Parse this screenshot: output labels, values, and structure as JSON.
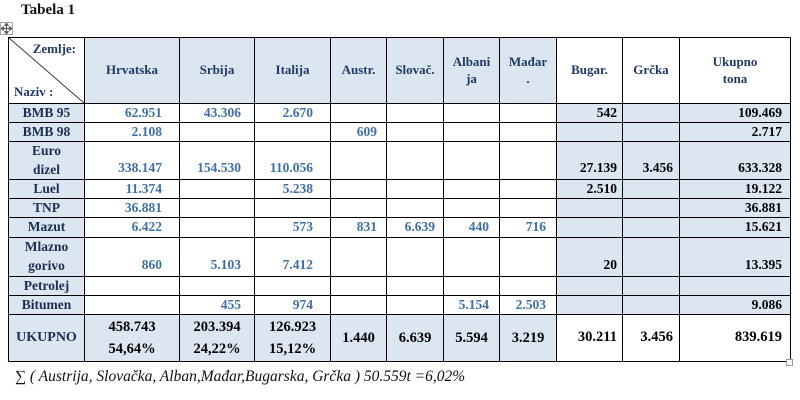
{
  "title": "Tabela 1",
  "colors": {
    "cell_shading": "#dce6f1",
    "value_text": "#3f6fa9",
    "header_text": "#1f3a66",
    "label_text": "#1c2f52",
    "grid_line": "#000000"
  },
  "table": {
    "corner": {
      "top_label": "Zemlje:",
      "bottom_label": "Naziv :"
    },
    "columns": [
      "Hrvatska",
      "Srbija",
      "Italija",
      "Austr.",
      "Slovač.",
      "Albani\nja",
      "Mađar\n.",
      "Bugar.",
      "Grčka",
      "Ukupno\ntona"
    ],
    "rows": [
      {
        "label": "BMB 95",
        "values": [
          "62.951",
          "43.306",
          "2.670",
          "",
          "",
          "",
          "",
          "542",
          "",
          "109.469"
        ]
      },
      {
        "label": "BMB 98",
        "values": [
          "2.108",
          "",
          "",
          "609",
          "",
          "",
          "",
          "",
          "",
          "2.717"
        ]
      },
      {
        "label": "Euro\ndizel",
        "values": [
          "338.147",
          "154.530",
          "110.056",
          "",
          "",
          "",
          "",
          "27.139",
          "3.456",
          "633.328"
        ]
      },
      {
        "label": "Luel",
        "values": [
          "11.374",
          "",
          "5.238",
          "",
          "",
          "",
          "",
          "2.510",
          "",
          "19.122"
        ]
      },
      {
        "label": "TNP",
        "values": [
          "36.881",
          "",
          "",
          "",
          "",
          "",
          "",
          "",
          "",
          "36.881"
        ]
      },
      {
        "label": "Mazut",
        "values": [
          "6.422",
          "",
          "573",
          "831",
          "6.639",
          "440",
          "716",
          "",
          "",
          "15.621"
        ]
      },
      {
        "label": "Mlazno\ngorivo",
        "values": [
          "860",
          "5.103",
          "7.412",
          "",
          "",
          "",
          "",
          "20",
          "",
          "13.395"
        ]
      },
      {
        "label": "Petrolej",
        "values": [
          "",
          "",
          "",
          "",
          "",
          "",
          "",
          "",
          "",
          ""
        ]
      },
      {
        "label": "Bitumen",
        "values": [
          "",
          "455",
          "974",
          "",
          "",
          "5.154",
          "2.503",
          "",
          "",
          "9.086"
        ]
      }
    ],
    "total_row": {
      "label": "UKUPNO",
      "values": [
        "458.743\n54,64%",
        "203.394\n24,22%",
        "126.923\n15,12%",
        "1.440",
        "6.639",
        "5.594",
        "3.219",
        "30.211",
        "3.456",
        "839.619"
      ]
    }
  },
  "footer_note": "∑ ( Austrija, Slovačka, Alban,Mađar,Bugarska, Grčka ) 50.559t =6,02%"
}
